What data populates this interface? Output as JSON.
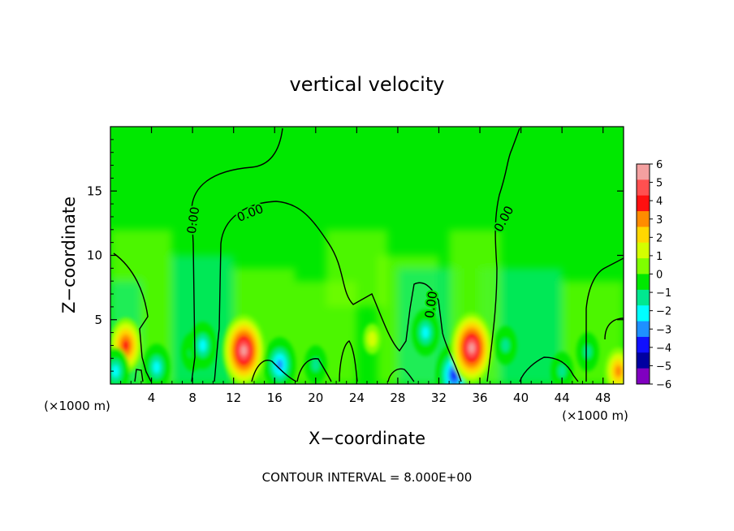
{
  "chart_data": {
    "type": "heatmap",
    "title": "vertical velocity",
    "xlabel": "X−coordinate",
    "ylabel": "Z−coordinate",
    "x_unit_left": "(×1000 m)",
    "x_unit_right": "(×1000 m)",
    "footer": "CONTOUR INTERVAL = 8.000E+00",
    "xlim": [
      0,
      50
    ],
    "ylim": [
      0,
      20
    ],
    "x_ticks": [
      4,
      8,
      12,
      16,
      20,
      24,
      28,
      32,
      36,
      40,
      44,
      48
    ],
    "x_tick_labels": [
      "4",
      "8",
      "12",
      "16",
      "20",
      "24",
      "28",
      "32",
      "36",
      "40",
      "44",
      "48"
    ],
    "y_ticks": [
      5,
      10,
      15
    ],
    "y_tick_labels": [
      "5",
      "10",
      "15"
    ],
    "colorbar": {
      "levels": [
        6,
        5,
        4,
        3,
        2,
        1,
        0,
        -1,
        -2,
        -3,
        -4,
        -5,
        -6
      ],
      "labels": [
        "6",
        "5",
        "4",
        "3",
        "2",
        "1",
        "0",
        "−1",
        "−2",
        "−3",
        "−4",
        "−5",
        "−6"
      ],
      "colors": [
        "#f4a0a0",
        "#ff5050",
        "#ff1010",
        "#ff8c00",
        "#ffd700",
        "#d4ff00",
        "#7fff00",
        "#00e800",
        "#00e890",
        "#00ffff",
        "#1e90ff",
        "#1010ff",
        "#0000a0",
        "#8000c0"
      ]
    },
    "background_color": "#00e800",
    "contour_label": "0.00",
    "features": [
      {
        "x": 1.5,
        "z": 3.0,
        "value": 4
      },
      {
        "x": 0.5,
        "z": 1.0,
        "value": -3
      },
      {
        "x": 4.5,
        "z": 1.3,
        "value": -3
      },
      {
        "x": 8.0,
        "z": 2.5,
        "value": -2
      },
      {
        "x": 9.0,
        "z": 3.0,
        "value": -3
      },
      {
        "x": 13.0,
        "z": 2.6,
        "value": 6
      },
      {
        "x": 16.5,
        "z": 1.5,
        "value": -4
      },
      {
        "x": 20.0,
        "z": 1.5,
        "value": -2
      },
      {
        "x": 25.5,
        "z": 3.5,
        "value": 1
      },
      {
        "x": 30.7,
        "z": 4.0,
        "value": -3
      },
      {
        "x": 33.5,
        "z": 0.7,
        "value": -5
      },
      {
        "x": 35.2,
        "z": 2.8,
        "value": 6
      },
      {
        "x": 38.5,
        "z": 3.0,
        "value": -2
      },
      {
        "x": 44.0,
        "z": 1.0,
        "value": -2
      },
      {
        "x": 46.5,
        "z": 2.5,
        "value": -2
      },
      {
        "x": 49.5,
        "z": 1.0,
        "value": 3
      }
    ]
  }
}
